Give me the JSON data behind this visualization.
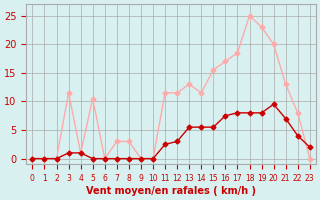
{
  "x": [
    0,
    1,
    2,
    3,
    4,
    5,
    6,
    7,
    8,
    9,
    10,
    11,
    12,
    13,
    14,
    15,
    16,
    17,
    18,
    19,
    20,
    21,
    22,
    23
  ],
  "rafales": [
    0,
    0,
    0,
    11.5,
    1,
    10.5,
    0,
    3,
    3,
    0,
    0,
    11.5,
    11.5,
    13,
    11.5,
    15.5,
    17,
    18.5,
    25,
    23,
    20,
    13,
    8,
    0
  ],
  "moyen": [
    0,
    0,
    0,
    1,
    1,
    0,
    0,
    0,
    0,
    0,
    0,
    2.5,
    3,
    5.5,
    5.5,
    5.5,
    7.5,
    8,
    8,
    8,
    9.5,
    7,
    4,
    2
  ],
  "color_rafales": "#ffaaaa",
  "color_moyen": "#cc0000",
  "bg_color": "#d8f0f0",
  "grid_color": "#aaaaaa",
  "xlabel": "Vent moyen/en rafales ( km/h )",
  "ylabel_ticks": [
    0,
    5,
    10,
    15,
    20,
    25
  ],
  "xlim": [
    -0.5,
    23.5
  ],
  "ylim": [
    -1,
    27
  ],
  "xlabel_color": "#cc0000",
  "tick_color": "#cc0000"
}
